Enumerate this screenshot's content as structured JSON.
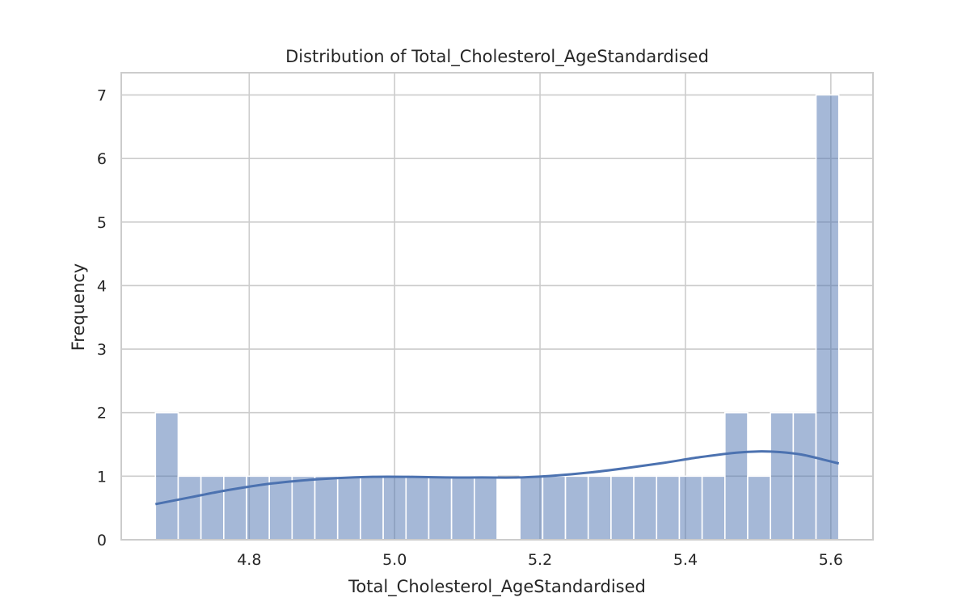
{
  "chart_data": {
    "type": "bar",
    "title": "Distribution of Total_Cholesterol_AgeStandardised",
    "xlabel": "Total_Cholesterol_AgeStandardised",
    "ylabel": "Frequency",
    "xlim": [
      4.624,
      5.658
    ],
    "ylim": [
      0,
      7.35
    ],
    "xticks": [
      4.8,
      5.0,
      5.2,
      5.4,
      5.6
    ],
    "xtick_labels": [
      "4.8",
      "5.0",
      "5.2",
      "5.4",
      "5.6"
    ],
    "yticks": [
      0,
      1,
      2,
      3,
      4,
      5,
      6,
      7
    ],
    "ytick_labels": [
      "0",
      "1",
      "2",
      "3",
      "4",
      "5",
      "6",
      "7"
    ],
    "bins": {
      "start": 4.671,
      "end": 5.611,
      "counts": [
        2,
        1,
        1,
        1,
        1,
        1,
        1,
        1,
        1,
        1,
        1,
        1,
        1,
        1,
        1,
        0,
        1,
        1,
        1,
        1,
        1,
        1,
        1,
        1,
        1,
        2,
        1,
        2,
        2,
        7
      ]
    },
    "kde": {
      "x": [
        4.671,
        4.72,
        4.77,
        4.82,
        4.87,
        4.92,
        4.97,
        5.02,
        5.07,
        5.12,
        5.17,
        5.22,
        5.27,
        5.32,
        5.37,
        5.42,
        5.47,
        5.5,
        5.53,
        5.56,
        5.59,
        5.611
      ],
      "y": [
        0.56,
        0.67,
        0.78,
        0.87,
        0.93,
        0.97,
        0.99,
        0.99,
        0.98,
        0.98,
        0.98,
        1.01,
        1.06,
        1.13,
        1.21,
        1.3,
        1.37,
        1.39,
        1.38,
        1.34,
        1.26,
        1.2
      ]
    },
    "grid": true,
    "colors": {
      "bar": "#4c72b0",
      "bar_opacity": 0.5,
      "line": "#4c72b0"
    }
  }
}
